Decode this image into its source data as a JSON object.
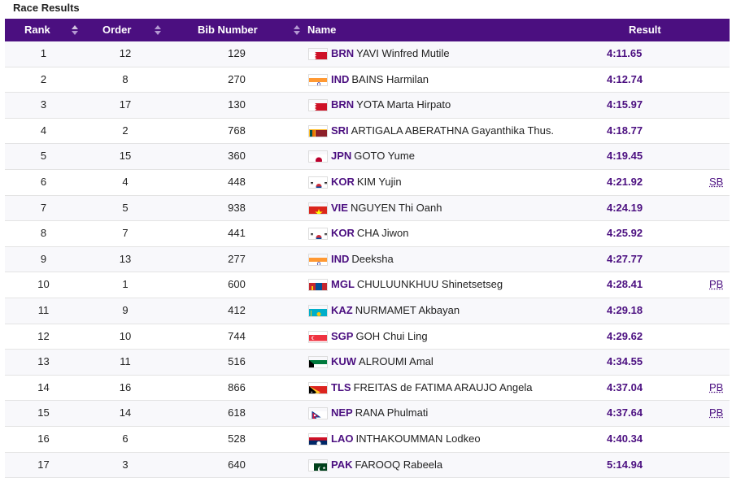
{
  "page": {
    "title": "Race Results"
  },
  "columns": {
    "rank": "Rank",
    "order": "Order",
    "bib": "Bib Number",
    "name": "Name",
    "result": "Result"
  },
  "rows": [
    {
      "rank": "1",
      "order": "12",
      "bib": "129",
      "noc": "BRN",
      "name": "YAVI Winfred Mutile",
      "result": "4:11.65",
      "note": ""
    },
    {
      "rank": "2",
      "order": "8",
      "bib": "270",
      "noc": "IND",
      "name": "BAINS Harmilan",
      "result": "4:12.74",
      "note": ""
    },
    {
      "rank": "3",
      "order": "17",
      "bib": "130",
      "noc": "BRN",
      "name": "YOTA Marta Hirpato",
      "result": "4:15.97",
      "note": ""
    },
    {
      "rank": "4",
      "order": "2",
      "bib": "768",
      "noc": "SRI",
      "name": "ARTIGALA ABERATHNA Gayanthika Thus.",
      "result": "4:18.77",
      "note": ""
    },
    {
      "rank": "5",
      "order": "15",
      "bib": "360",
      "noc": "JPN",
      "name": "GOTO Yume",
      "result": "4:19.45",
      "note": ""
    },
    {
      "rank": "6",
      "order": "4",
      "bib": "448",
      "noc": "KOR",
      "name": "KIM Yujin",
      "result": "4:21.92",
      "note": "SB"
    },
    {
      "rank": "7",
      "order": "5",
      "bib": "938",
      "noc": "VIE",
      "name": "NGUYEN Thi Oanh",
      "result": "4:24.19",
      "note": ""
    },
    {
      "rank": "8",
      "order": "7",
      "bib": "441",
      "noc": "KOR",
      "name": "CHA Jiwon",
      "result": "4:25.92",
      "note": ""
    },
    {
      "rank": "9",
      "order": "13",
      "bib": "277",
      "noc": "IND",
      "name": "Deeksha",
      "result": "4:27.77",
      "note": ""
    },
    {
      "rank": "10",
      "order": "1",
      "bib": "600",
      "noc": "MGL",
      "name": "CHULUUNKHUU Shinetsetseg",
      "result": "4:28.41",
      "note": "PB"
    },
    {
      "rank": "11",
      "order": "9",
      "bib": "412",
      "noc": "KAZ",
      "name": "NURMAMET Akbayan",
      "result": "4:29.18",
      "note": ""
    },
    {
      "rank": "12",
      "order": "10",
      "bib": "744",
      "noc": "SGP",
      "name": "GOH Chui Ling",
      "result": "4:29.62",
      "note": ""
    },
    {
      "rank": "13",
      "order": "11",
      "bib": "516",
      "noc": "KUW",
      "name": "ALROUMI Amal",
      "result": "4:34.55",
      "note": ""
    },
    {
      "rank": "14",
      "order": "16",
      "bib": "866",
      "noc": "TLS",
      "name": "FREITAS de FATIMA ARAUJO Angela",
      "result": "4:37.04",
      "note": "PB"
    },
    {
      "rank": "15",
      "order": "14",
      "bib": "618",
      "noc": "NEP",
      "name": "RANA Phulmati",
      "result": "4:37.64",
      "note": "PB"
    },
    {
      "rank": "16",
      "order": "6",
      "bib": "528",
      "noc": "LAO",
      "name": "INTHAKOUMMAN Lodkeo",
      "result": "4:40.34",
      "note": ""
    },
    {
      "rank": "17",
      "order": "3",
      "bib": "640",
      "noc": "PAK",
      "name": "FAROOQ Rabeela",
      "result": "5:14.94",
      "note": ""
    }
  ],
  "colors": {
    "header_bg": "#4b0f80",
    "accent": "#4b0f80"
  }
}
